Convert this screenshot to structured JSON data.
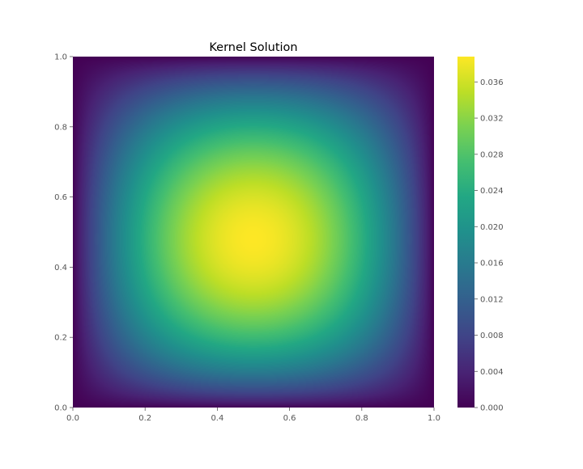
{
  "chart_data": {
    "type": "heatmap",
    "title": "Kernel Solution",
    "xlabel": "",
    "ylabel": "",
    "xlim": [
      0.0,
      1.0
    ],
    "ylim": [
      0.0,
      1.0
    ],
    "x_ticks": [
      0.0,
      0.2,
      0.4,
      0.6,
      0.8,
      1.0
    ],
    "x_tick_labels": [
      "0.0",
      "0.2",
      "0.4",
      "0.6",
      "0.8",
      "1.0"
    ],
    "y_ticks": [
      0.0,
      0.2,
      0.4,
      0.6,
      0.8,
      1.0
    ],
    "y_tick_labels": [
      "0.0",
      "0.2",
      "0.4",
      "0.6",
      "0.8",
      "1.0"
    ],
    "colormap": "viridis",
    "colorbar": {
      "vmin": 0.0,
      "vmax": 0.0388,
      "ticks": [
        0.0,
        0.004,
        0.008,
        0.012,
        0.016,
        0.02,
        0.024,
        0.028,
        0.032,
        0.036
      ],
      "tick_labels": [
        "0.000",
        "0.004",
        "0.008",
        "0.012",
        "0.016",
        "0.020",
        "0.024",
        "0.028",
        "0.032",
        "0.036"
      ]
    },
    "field": {
      "description_of_values": "z = 0 on all four edges, peak near (0.5, 0.48)",
      "peak_value": 0.0388,
      "peak_location": [
        0.5,
        0.48
      ],
      "boundary_value": 0.0
    },
    "grid": false
  }
}
